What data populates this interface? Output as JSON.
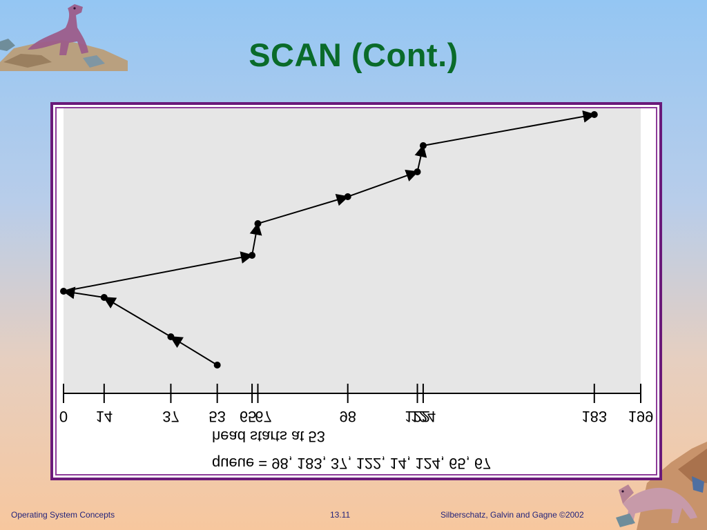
{
  "slide": {
    "title": "SCAN (Cont.)"
  },
  "footer": {
    "left": "Operating System Concepts",
    "center": "13.11",
    "right": "Silberschatz, Galvin and  Gagne ©2002"
  },
  "figure": {
    "queue_text": "queue = 98, 183, 37, 122, 14, 124, 65, 67",
    "head_text": "head starts at 53",
    "mirrored_text": true,
    "axis_ticks": [
      0,
      14,
      37,
      53,
      65,
      67,
      98,
      122,
      124,
      183,
      199
    ],
    "axis_range": [
      0,
      199
    ],
    "head_start": 53,
    "path": [
      53,
      37,
      14,
      0,
      65,
      67,
      98,
      122,
      124,
      183
    ],
    "colors": {
      "plot_background": "#e6e6e6",
      "line": "#000000",
      "frame": "#6a1a7a",
      "title": "#0a6b2a"
    }
  },
  "decorations": {
    "top_left": "dinosaur-logo-icon",
    "bottom_right": "dinosaur-logo-icon"
  }
}
